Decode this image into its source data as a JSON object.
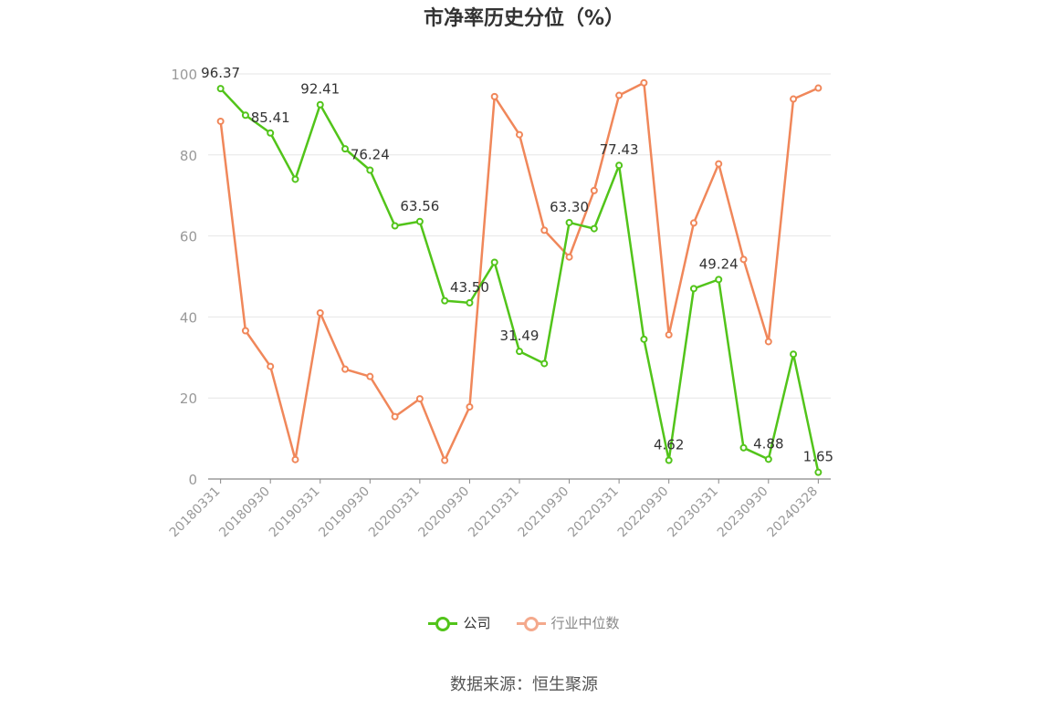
{
  "chart_data": {
    "type": "line",
    "title": "市净率历史分位（%）",
    "categories": [
      "20180331",
      "20180630",
      "20180930",
      "20181231",
      "20190331",
      "20190630",
      "20190930",
      "20191231",
      "20200331",
      "20200630",
      "20200930",
      "20201231",
      "20210331",
      "20210630",
      "20210930",
      "20211231",
      "20220331",
      "20220630",
      "20220930",
      "20221231",
      "20230331",
      "20230630",
      "20230930",
      "20231231",
      "20240328"
    ],
    "x_tick_labels": [
      "20180331",
      "20180930",
      "20190331",
      "20190930",
      "20200331",
      "20200930",
      "20210331",
      "20210930",
      "20220331",
      "20220930",
      "20230331",
      "20230930",
      "20240328"
    ],
    "y_ticks": [
      0,
      20,
      40,
      60,
      80,
      100
    ],
    "ylim": [
      0,
      100
    ],
    "grid": true,
    "legend_position": "bottom",
    "series": [
      {
        "name": "公司",
        "color": "#52c41a",
        "values": [
          96.37,
          89.8,
          85.41,
          74.0,
          92.41,
          81.5,
          76.24,
          62.5,
          63.56,
          44.0,
          43.5,
          53.5,
          31.49,
          28.5,
          63.3,
          61.8,
          77.43,
          34.5,
          4.62,
          47.0,
          49.24,
          7.7,
          4.88,
          30.8,
          1.65
        ],
        "labels": {
          "0": "96.37",
          "2": "85.41",
          "4": "92.41",
          "6": "76.24",
          "8": "63.56",
          "10": "43.50",
          "12": "31.49",
          "14": "63.30",
          "16": "77.43",
          "18": "4.62",
          "20": "49.24",
          "22": "4.88",
          "24": "1.65"
        }
      },
      {
        "name": "行业中位数",
        "color": "#f0875a",
        "values": [
          88.3,
          36.6,
          27.8,
          4.8,
          41.0,
          27.1,
          25.3,
          15.4,
          19.8,
          4.6,
          17.8,
          94.4,
          85.0,
          61.4,
          54.8,
          71.2,
          94.7,
          97.8,
          35.6,
          63.2,
          77.8,
          54.2,
          33.9,
          93.8,
          96.5
        ]
      }
    ]
  },
  "legend": [
    {
      "label": "公司",
      "color": "#52c41a"
    },
    {
      "label": "行业中位数",
      "color": "#f4a98c"
    }
  ],
  "source": "数据来源：恒生聚源"
}
